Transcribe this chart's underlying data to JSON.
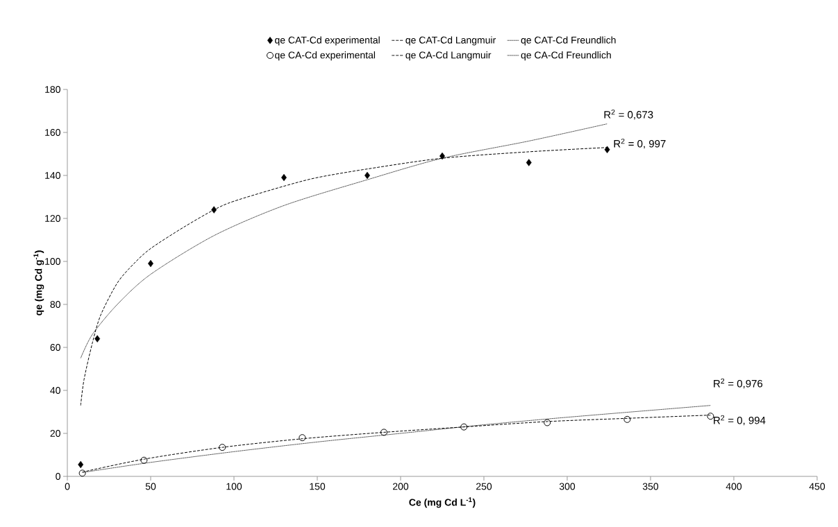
{
  "chart_data": {
    "type": "scatter",
    "xlabel": "Ce (mg Cd L$^{-1}$)",
    "ylabel": "qe (mg Cd g$^{-1}$)",
    "xlim": [
      0,
      450
    ],
    "ylim": [
      0,
      180
    ],
    "xticks": [
      0,
      50,
      100,
      150,
      200,
      250,
      300,
      350,
      400,
      450
    ],
    "yticks": [
      0,
      20,
      40,
      60,
      80,
      100,
      120,
      140,
      160,
      180
    ],
    "grid": false,
    "legend": "top",
    "series": [
      {
        "name": "qe CAT-Cd experimental",
        "type": "scatter",
        "marker": "diamond",
        "color": "#000000",
        "x": [
          8,
          18,
          50,
          88,
          130,
          180,
          225,
          277,
          324
        ],
        "values": [
          5.5,
          64,
          99,
          124,
          139,
          140,
          149,
          146,
          152
        ]
      },
      {
        "name": "qe CAT-Cd Langmuir",
        "type": "line",
        "line_style": "dashed",
        "color": "#000000",
        "x": [
          8,
          10,
          15,
          20,
          30,
          40,
          50,
          70,
          88,
          100,
          130,
          150,
          180,
          225,
          277,
          324
        ],
        "values": [
          33,
          45,
          62,
          75,
          90,
          99,
          106,
          116,
          124,
          128,
          135,
          139,
          143,
          148,
          151,
          153
        ]
      },
      {
        "name": "qe CAT-Cd Freundlich",
        "type": "line",
        "line_style": "dotted",
        "color": "#000000",
        "x": [
          8,
          15,
          30,
          50,
          88,
          130,
          180,
          225,
          277,
          324
        ],
        "values": [
          55,
          66,
          80,
          94,
          112,
          126,
          138,
          148,
          156,
          164
        ]
      },
      {
        "name": "qe CA-Cd experimental",
        "type": "scatter",
        "marker": "circle",
        "color": "#000000",
        "x": [
          9,
          46,
          93,
          141,
          190,
          238,
          288,
          336,
          386
        ],
        "values": [
          1.5,
          7.5,
          13.5,
          18,
          20.5,
          23,
          25,
          26.5,
          28
        ]
      },
      {
        "name": "qe CA-Cd Langmuir",
        "type": "line",
        "line_style": "dashed",
        "color": "#000000",
        "x": [
          9,
          46,
          93,
          141,
          190,
          238,
          288,
          336,
          386
        ],
        "values": [
          2,
          8,
          13.5,
          17.5,
          20.5,
          23,
          25.5,
          27,
          28.5
        ]
      },
      {
        "name": "qe CA-Cd Freundlich",
        "type": "line",
        "line_style": "dotted",
        "color": "#000000",
        "x": [
          9,
          50,
          100,
          150,
          200,
          250,
          300,
          386
        ],
        "values": [
          1.8,
          6.5,
          11.5,
          16,
          20,
          24,
          27.5,
          33
        ]
      }
    ],
    "annotations": [
      "R$^{2}$ = 0,673",
      "R$^{2}$ = 0, 997",
      "R$^{2}$ = 0,976",
      "R$^{2}$ = 0, 994"
    ]
  }
}
